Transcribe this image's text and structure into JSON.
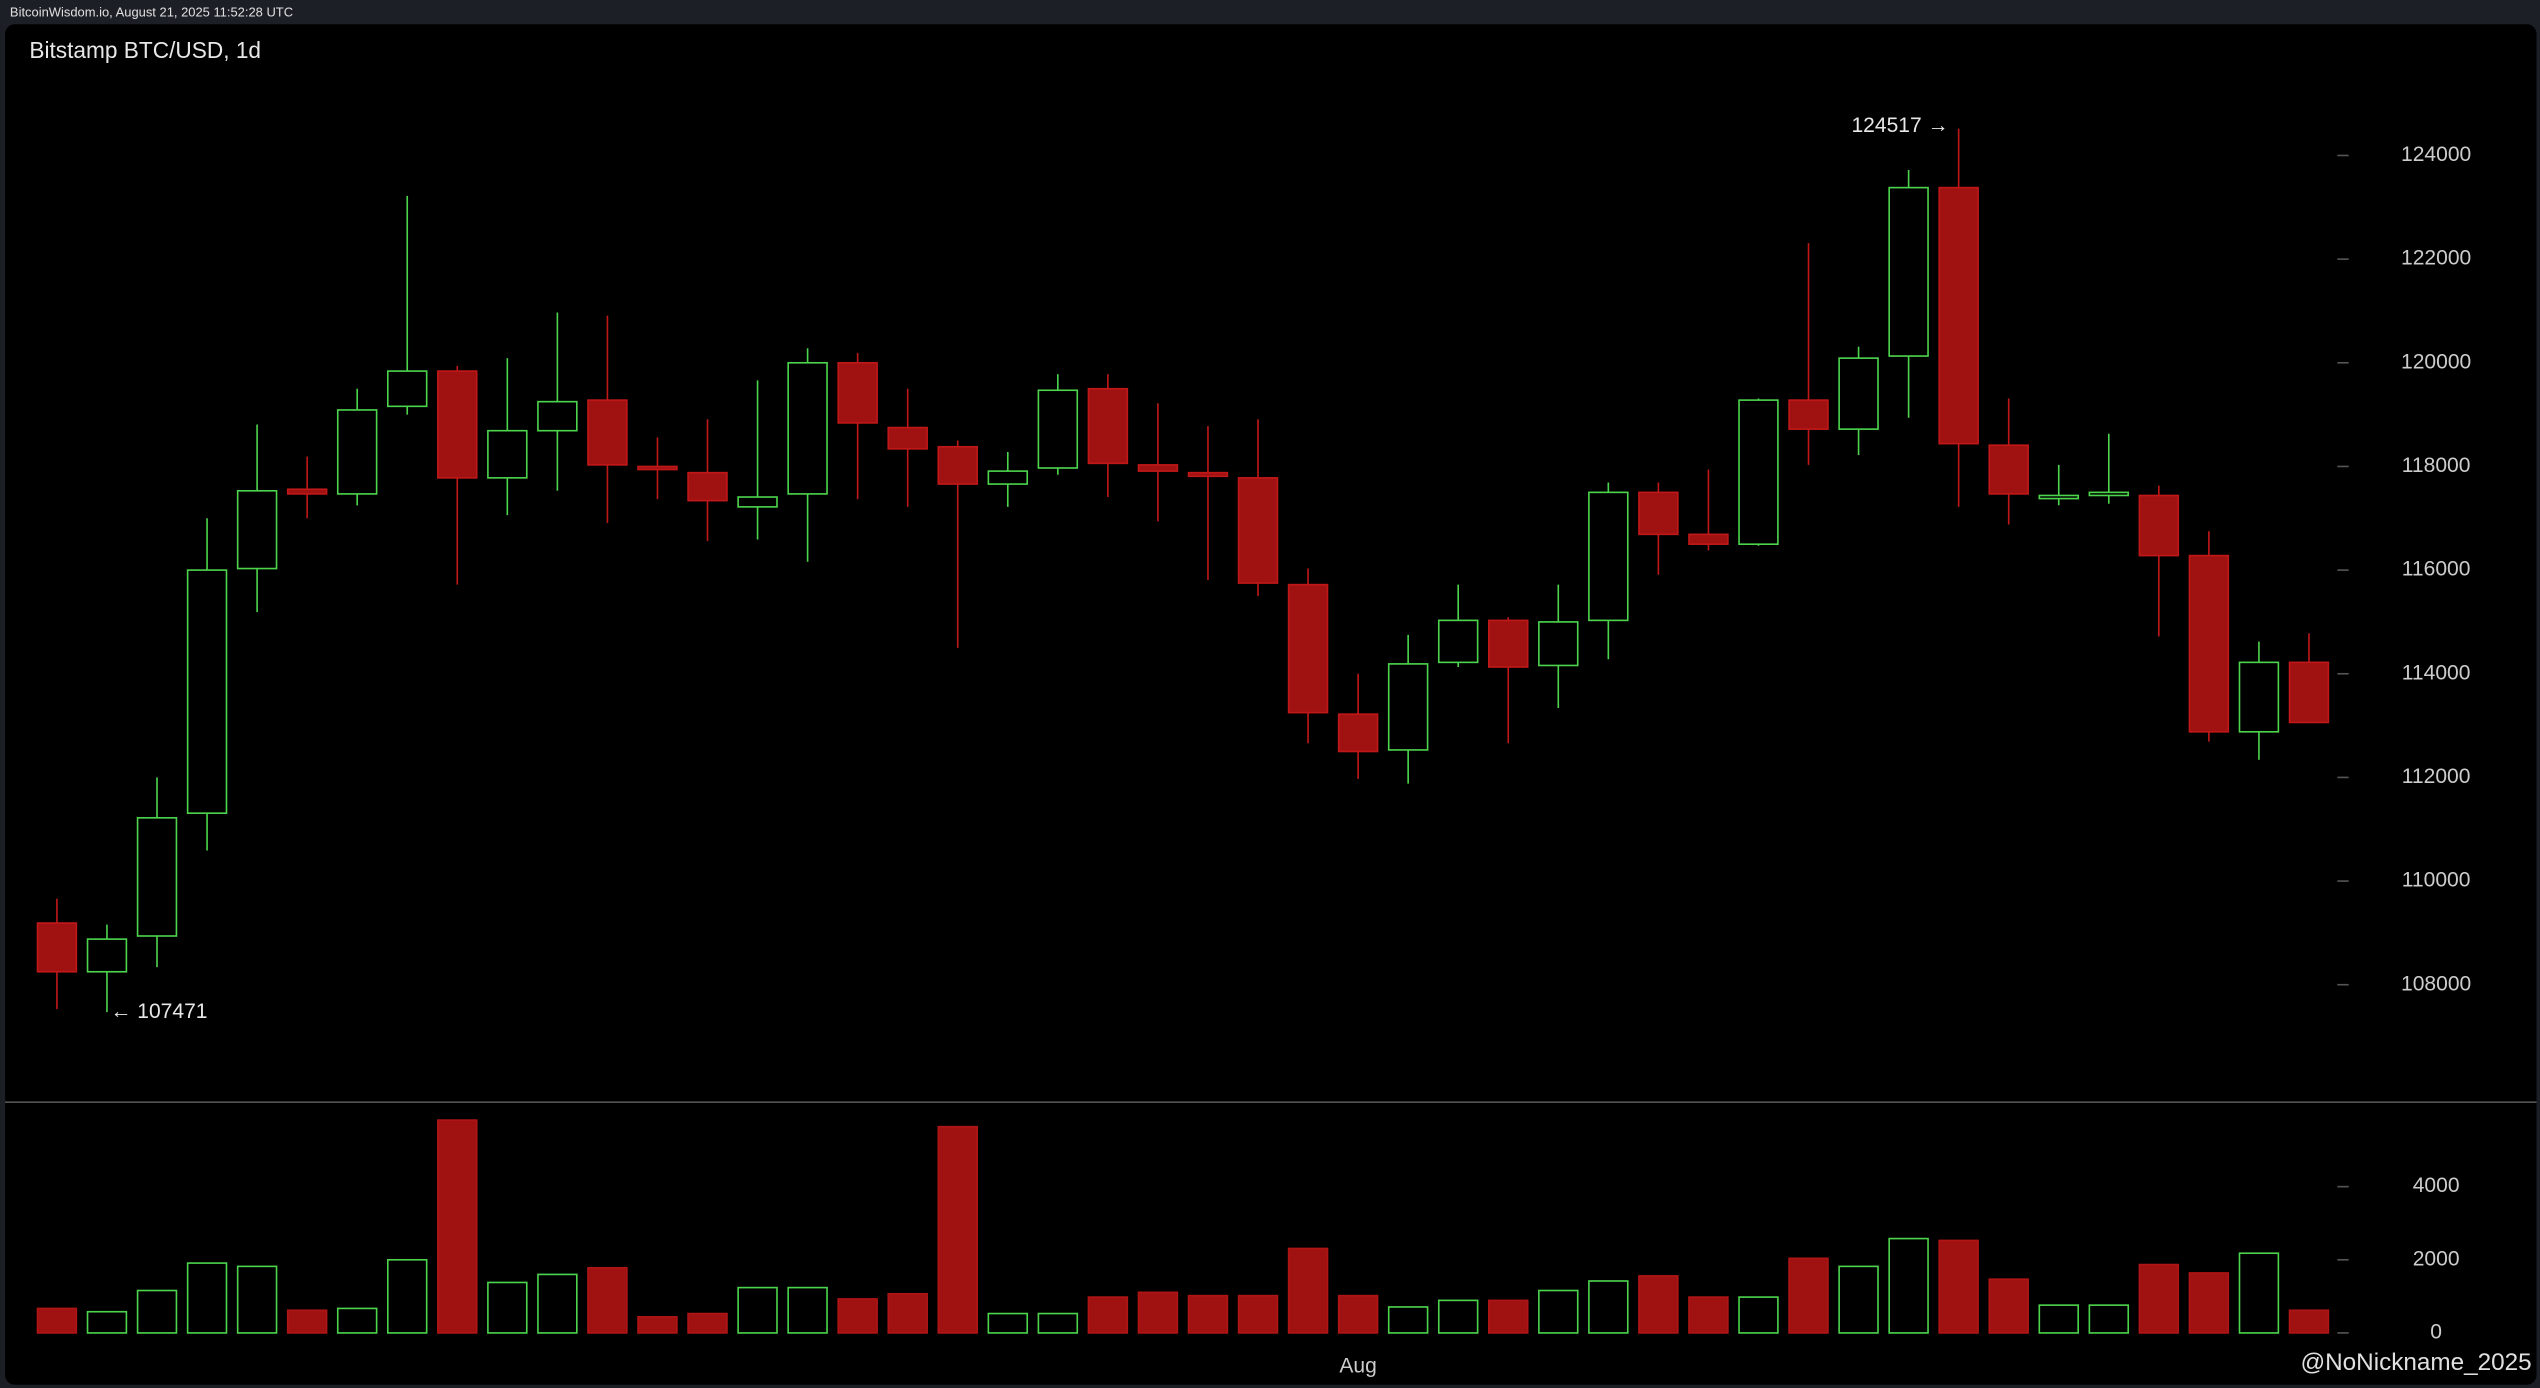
{
  "header": {
    "text": "BitcoinWisdom.io, August 21, 2025 11:52:28 UTC"
  },
  "watermark": "@NoNickname_2025",
  "chart_data": {
    "type": "candlestick",
    "title": "Bitstamp BTC/USD, 1d",
    "categories": [
      null,
      null,
      null,
      null,
      null,
      null,
      null,
      null,
      null,
      null,
      null,
      null,
      null,
      null,
      null,
      null,
      null,
      null,
      null,
      null,
      null,
      null,
      null,
      null,
      null,
      null,
      "Aug",
      null,
      null,
      null,
      null,
      null,
      null,
      null,
      null,
      null,
      null,
      null,
      null,
      null,
      null,
      null,
      null,
      null,
      null,
      null
    ],
    "open": [
      109190,
      108250,
      108940,
      111310,
      116030,
      117560,
      117470,
      119160,
      119840,
      117780,
      118690,
      119280,
      118000,
      117880,
      117220,
      117470,
      120000,
      118750,
      118380,
      117660,
      117970,
      119500,
      118030,
      117880,
      117780,
      115720,
      113220,
      112530,
      114220,
      115030,
      114160,
      115030,
      117500,
      116690,
      116500,
      119280,
      118720,
      120130,
      123380,
      118410,
      117380,
      117440,
      117440,
      116280,
      112880,
      114220
    ],
    "high": [
      109660,
      109160,
      112000,
      117000,
      118810,
      118190,
      119500,
      123220,
      119940,
      120090,
      120970,
      120910,
      118560,
      118910,
      119660,
      120280,
      120190,
      119500,
      118500,
      118280,
      119780,
      119780,
      119220,
      118780,
      118910,
      116030,
      114000,
      114750,
      115720,
      115090,
      115720,
      117690,
      117690,
      117940,
      119310,
      122310,
      120310,
      123720,
      124517,
      119310,
      118030,
      118630,
      117630,
      116750,
      114620,
      114780
    ],
    "low": [
      107530,
      107471,
      108340,
      110590,
      115190,
      117000,
      117250,
      119000,
      115720,
      117060,
      117530,
      116910,
      117370,
      116560,
      116590,
      116160,
      117370,
      117220,
      114500,
      117220,
      117840,
      117410,
      116940,
      115810,
      115500,
      112660,
      111970,
      111880,
      114130,
      112660,
      113340,
      114280,
      115910,
      116380,
      116470,
      118030,
      118220,
      118940,
      117220,
      116880,
      117250,
      117280,
      114720,
      112690,
      112340,
      113060
    ],
    "close": [
      108250,
      108880,
      111220,
      116000,
      117530,
      117470,
      119090,
      119840,
      117780,
      118690,
      119250,
      118030,
      117940,
      117340,
      117410,
      120000,
      118840,
      118340,
      117660,
      117910,
      119470,
      118060,
      117910,
      117810,
      115750,
      113250,
      112500,
      114190,
      115030,
      114130,
      115000,
      117500,
      116690,
      116500,
      119280,
      118720,
      120090,
      123380,
      118440,
      117470,
      117440,
      117500,
      116280,
      112880,
      114220,
      113060
    ],
    "ylim": [
      105750,
      125500
    ],
    "yticks": [
      108000,
      110000,
      112000,
      114000,
      116000,
      118000,
      120000,
      122000,
      124000
    ],
    "up_color": "#4cd44c",
    "down_color": "#a01212",
    "volume": {
      "values": [
        670,
        580,
        1160,
        1910,
        1820,
        620,
        670,
        2000,
        5820,
        1380,
        1600,
        1780,
        440,
        530,
        1240,
        1240,
        930,
        1070,
        5640,
        530,
        530,
        980,
        1110,
        1020,
        1020,
        2310,
        1020,
        710,
        890,
        890,
        1160,
        1420,
        1560,
        980,
        980,
        2040,
        1820,
        2580,
        2530,
        1470,
        760,
        760,
        1870,
        1640,
        2180,
        620
      ],
      "ylim": [
        0,
        6200
      ],
      "yticks": [
        0,
        2000,
        4000
      ]
    },
    "annotations": [
      "124517 →",
      "← 107471"
    ]
  }
}
